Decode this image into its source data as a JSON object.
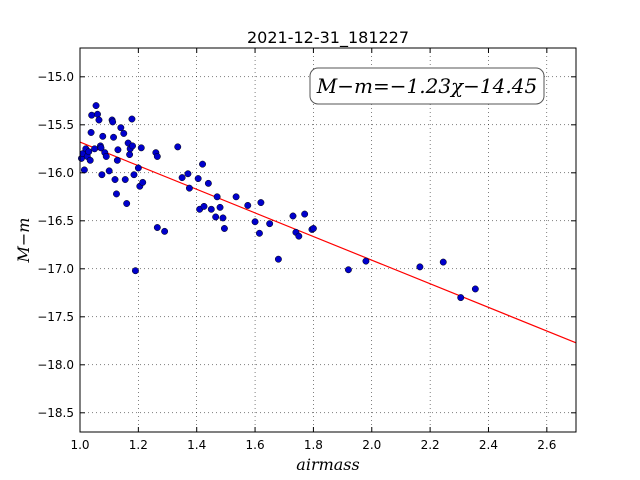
{
  "chart_data": {
    "type": "scatter",
    "title": "2021-12-31_181227",
    "xlabel": "airmass",
    "ylabel": "M−m",
    "annotation": "M−m=−1.23χ−14.45",
    "xlim": [
      1.0,
      2.7
    ],
    "ylim": [
      -18.7,
      -14.7
    ],
    "xticks": [
      1.0,
      1.2,
      1.4,
      1.6,
      1.8,
      2.0,
      2.2,
      2.4,
      2.6
    ],
    "xtick_labels": [
      "1.0",
      "1.2",
      "1.4",
      "1.6",
      "1.8",
      "2.0",
      "2.2",
      "2.4",
      "2.6"
    ],
    "yticks": [
      -15.0,
      -15.5,
      -16.0,
      -16.5,
      -17.0,
      -17.5,
      -18.0,
      -18.5
    ],
    "ytick_labels": [
      "−15.0",
      "−15.5",
      "−16.0",
      "−16.5",
      "−17.0",
      "−17.5",
      "−18.0",
      "−18.5"
    ],
    "grid": true,
    "fit": {
      "slope": -1.23,
      "intercept": -14.45,
      "color": "#ff0000"
    },
    "point_color": "#0000cc",
    "points": [
      [
        1.005,
        -15.85
      ],
      [
        1.01,
        -15.8
      ],
      [
        1.015,
        -15.97
      ],
      [
        1.02,
        -15.75
      ],
      [
        1.025,
        -15.83
      ],
      [
        1.03,
        -15.78
      ],
      [
        1.035,
        -15.87
      ],
      [
        1.038,
        -15.58
      ],
      [
        1.04,
        -15.4
      ],
      [
        1.05,
        -15.75
      ],
      [
        1.055,
        -15.3
      ],
      [
        1.06,
        -15.39
      ],
      [
        1.065,
        -15.45
      ],
      [
        1.07,
        -15.72
      ],
      [
        1.072,
        -15.74
      ],
      [
        1.075,
        -16.02
      ],
      [
        1.078,
        -15.62
      ],
      [
        1.085,
        -15.79
      ],
      [
        1.09,
        -15.83
      ],
      [
        1.1,
        -15.98
      ],
      [
        1.11,
        -15.45
      ],
      [
        1.112,
        -15.47
      ],
      [
        1.115,
        -15.63
      ],
      [
        1.12,
        -16.07
      ],
      [
        1.125,
        -16.22
      ],
      [
        1.128,
        -15.87
      ],
      [
        1.13,
        -15.76
      ],
      [
        1.14,
        -15.53
      ],
      [
        1.15,
        -15.59
      ],
      [
        1.155,
        -16.07
      ],
      [
        1.16,
        -16.32
      ],
      [
        1.165,
        -15.69
      ],
      [
        1.17,
        -15.81
      ],
      [
        1.172,
        -15.75
      ],
      [
        1.178,
        -15.44
      ],
      [
        1.18,
        -15.72
      ],
      [
        1.185,
        -16.02
      ],
      [
        1.19,
        -17.02
      ],
      [
        1.2,
        -15.95
      ],
      [
        1.205,
        -16.14
      ],
      [
        1.21,
        -15.74
      ],
      [
        1.215,
        -16.1
      ],
      [
        1.26,
        -15.79
      ],
      [
        1.265,
        -15.83
      ],
      [
        1.265,
        -16.57
      ],
      [
        1.29,
        -16.61
      ],
      [
        1.335,
        -15.73
      ],
      [
        1.35,
        -16.05
      ],
      [
        1.37,
        -16.01
      ],
      [
        1.375,
        -16.16
      ],
      [
        1.405,
        -16.06
      ],
      [
        1.41,
        -16.38
      ],
      [
        1.42,
        -15.91
      ],
      [
        1.425,
        -16.35
      ],
      [
        1.44,
        -16.11
      ],
      [
        1.45,
        -16.38
      ],
      [
        1.465,
        -16.46
      ],
      [
        1.47,
        -16.25
      ],
      [
        1.48,
        -16.36
      ],
      [
        1.49,
        -16.47
      ],
      [
        1.495,
        -16.58
      ],
      [
        1.535,
        -16.25
      ],
      [
        1.575,
        -16.34
      ],
      [
        1.6,
        -16.51
      ],
      [
        1.615,
        -16.63
      ],
      [
        1.62,
        -16.31
      ],
      [
        1.65,
        -16.53
      ],
      [
        1.68,
        -16.9
      ],
      [
        1.73,
        -16.45
      ],
      [
        1.74,
        -16.62
      ],
      [
        1.75,
        -16.66
      ],
      [
        1.77,
        -16.43
      ],
      [
        1.795,
        -16.59
      ],
      [
        1.8,
        -16.58
      ],
      [
        1.92,
        -17.01
      ],
      [
        1.98,
        -16.92
      ],
      [
        2.165,
        -16.98
      ],
      [
        2.245,
        -16.93
      ],
      [
        2.305,
        -17.3
      ],
      [
        2.355,
        -17.21
      ]
    ]
  }
}
